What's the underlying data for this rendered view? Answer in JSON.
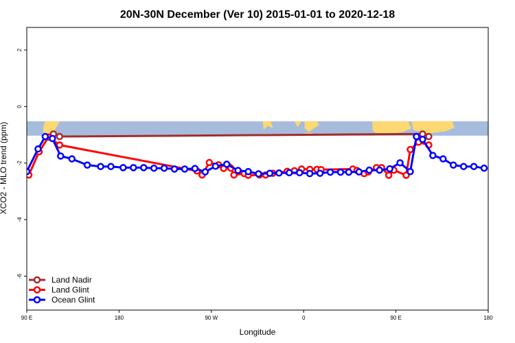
{
  "chart_data": {
    "type": "line",
    "title": "20N-30N December (Ver 10)   2015-01-01 to 2020-12-18",
    "xlabel": "Longitude",
    "ylabel": "XCO2 - MLO trend (ppm)",
    "xlim": [
      -90,
      360
    ],
    "ylim": [
      -7.2,
      2.8
    ],
    "x_ticks": [
      -90,
      0,
      90,
      180,
      270,
      360
    ],
    "x_tick_labels": [
      "90 E",
      "180",
      "90 W",
      "0",
      "90 E",
      "180"
    ],
    "y_ticks": [
      -6,
      -4,
      -2,
      0,
      2
    ],
    "y_tick_labels": [
      "-6",
      "-4",
      "-2",
      "0",
      "2"
    ],
    "map_strip": {
      "ymin": -1.03,
      "ymax": -0.52,
      "ocean_color": "#a6bcdc",
      "land_color": "#fbd872"
    },
    "legend": {
      "position": "bottom-left"
    },
    "series": [
      {
        "name": "Land Nadir",
        "color": "#a52a2a",
        "x": [
          -64,
          -58,
          296,
          302
        ],
        "y": [
          -0.97,
          -1.06,
          -0.97,
          -1.06
        ]
      },
      {
        "name": "Land Glint",
        "color": "#ff0000",
        "x": [
          -88,
          -78,
          -69,
          -58,
          76,
          81,
          88,
          97,
          102,
          107,
          109,
          112,
          122,
          126,
          137,
          143,
          150,
          164,
          171,
          178,
          186,
          193,
          197,
          228,
          232,
          239,
          243,
          251,
          256,
          263,
          268,
          280,
          284,
          292,
          302
        ],
        "y": [
          -2.42,
          -1.6,
          -1.08,
          -1.36,
          -2.28,
          -2.42,
          -1.98,
          -2.06,
          -2.19,
          -2.12,
          -2.18,
          -2.42,
          -2.37,
          -2.43,
          -2.42,
          -2.42,
          -2.36,
          -2.29,
          -2.27,
          -2.21,
          -2.22,
          -2.22,
          -2.23,
          -2.21,
          -2.26,
          -2.37,
          -2.31,
          -2.16,
          -2.16,
          -2.43,
          -2.25,
          -2.43,
          -1.52,
          -1.26,
          -1.36
        ]
      },
      {
        "name": "Ocean Glint",
        "color": "#0000ff",
        "x": [
          -90,
          -79,
          -72,
          -65,
          -57,
          -46,
          -31,
          -18,
          -8,
          4,
          14,
          24,
          34,
          44,
          54,
          64,
          74,
          84,
          94,
          105,
          116,
          126,
          136,
          147,
          156,
          166,
          176,
          186,
          196,
          206,
          216,
          224,
          234,
          244,
          254,
          264,
          274,
          284,
          290,
          296,
          306,
          316,
          326,
          336,
          346,
          356
        ],
        "y": [
          -2.3,
          -1.5,
          -1.06,
          -1.13,
          -1.75,
          -1.85,
          -2.07,
          -2.12,
          -2.12,
          -2.16,
          -2.16,
          -2.16,
          -2.18,
          -2.18,
          -2.21,
          -2.21,
          -2.19,
          -2.31,
          -2.11,
          -2.04,
          -2.26,
          -2.3,
          -2.38,
          -2.36,
          -2.35,
          -2.34,
          -2.34,
          -2.37,
          -2.36,
          -2.32,
          -2.32,
          -2.32,
          -2.31,
          -2.25,
          -2.25,
          -2.2,
          -1.99,
          -2.3,
          -1.06,
          -1.16,
          -1.73,
          -1.85,
          -2.07,
          -2.12,
          -2.12,
          -2.18
        ]
      }
    ]
  }
}
